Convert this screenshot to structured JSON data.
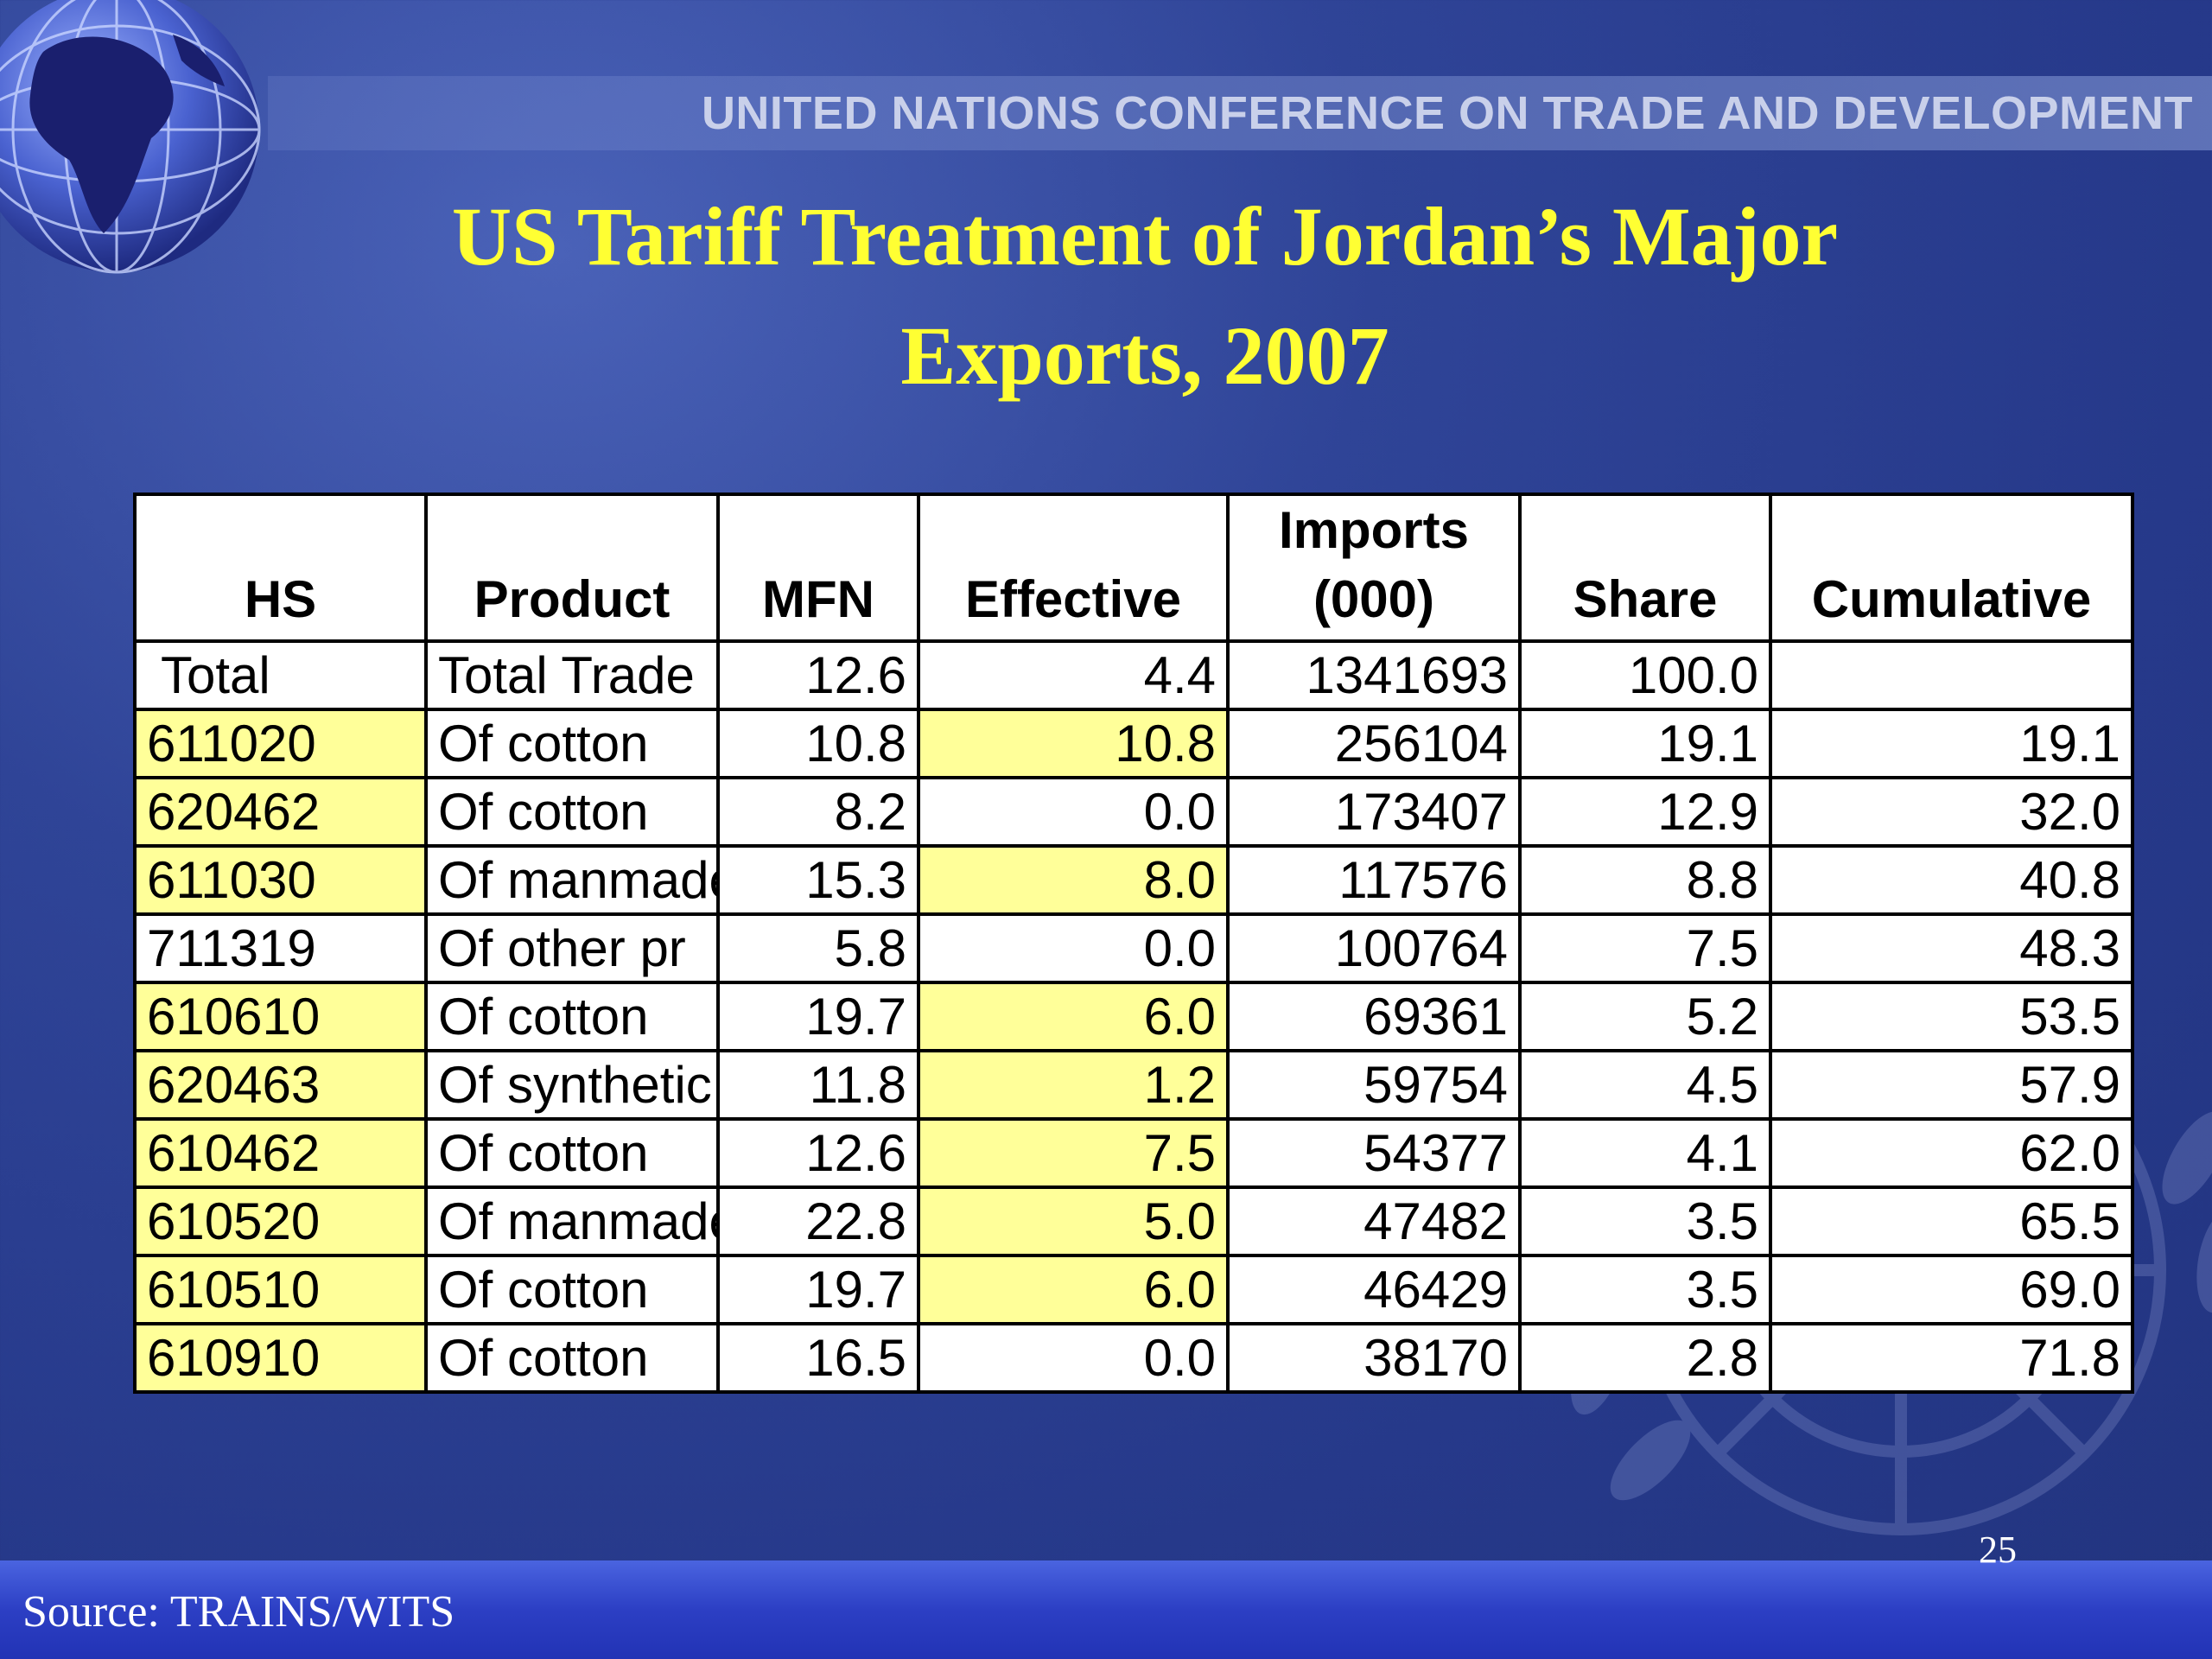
{
  "header": {
    "org_name": "UNITED NATIONS CONFERENCE ON TRADE AND DEVELOPMENT"
  },
  "title": {
    "line1": "US Tariff Treatment of Jordan’s Major",
    "line2": "Exports, 2007"
  },
  "table": {
    "columns": [
      "HS",
      "Product",
      "MFN",
      "Effective",
      "Imports (000)",
      "Share",
      "Cumulative"
    ],
    "imports_header": {
      "line1": "Imports",
      "line2": "(000)"
    },
    "rows": [
      {
        "hs": "Total",
        "product": "Total Trade",
        "mfn": "12.6",
        "effective": "4.4",
        "imports": "1341693",
        "share": "100.0",
        "cumulative": "",
        "highlight_hs": false,
        "highlight_effective": false
      },
      {
        "hs": "611020",
        "product": "Of cotton",
        "mfn": "10.8",
        "effective": "10.8",
        "imports": "256104",
        "share": "19.1",
        "cumulative": "19.1",
        "highlight_hs": true,
        "highlight_effective": true
      },
      {
        "hs": "620462",
        "product": "Of cotton",
        "mfn": "8.2",
        "effective": "0.0",
        "imports": "173407",
        "share": "12.9",
        "cumulative": "32.0",
        "highlight_hs": true,
        "highlight_effective": false
      },
      {
        "hs": "611030",
        "product": "Of manmade",
        "mfn": "15.3",
        "effective": "8.0",
        "imports": "117576",
        "share": "8.8",
        "cumulative": "40.8",
        "highlight_hs": true,
        "highlight_effective": true
      },
      {
        "hs": "711319",
        "product": "Of other pr",
        "mfn": "5.8",
        "effective": "0.0",
        "imports": "100764",
        "share": "7.5",
        "cumulative": "48.3",
        "highlight_hs": false,
        "highlight_effective": false
      },
      {
        "hs": "610610",
        "product": "Of cotton",
        "mfn": "19.7",
        "effective": "6.0",
        "imports": "69361",
        "share": "5.2",
        "cumulative": "53.5",
        "highlight_hs": true,
        "highlight_effective": true
      },
      {
        "hs": "620463",
        "product": "Of synthetic",
        "mfn": "11.8",
        "effective": "1.2",
        "imports": "59754",
        "share": "4.5",
        "cumulative": "57.9",
        "highlight_hs": true,
        "highlight_effective": true
      },
      {
        "hs": "610462",
        "product": "Of cotton",
        "mfn": "12.6",
        "effective": "7.5",
        "imports": "54377",
        "share": "4.1",
        "cumulative": "62.0",
        "highlight_hs": true,
        "highlight_effective": true
      },
      {
        "hs": "610520",
        "product": "Of manmade",
        "mfn": "22.8",
        "effective": "5.0",
        "imports": "47482",
        "share": "3.5",
        "cumulative": "65.5",
        "highlight_hs": true,
        "highlight_effective": true
      },
      {
        "hs": "610510",
        "product": "Of cotton",
        "mfn": "19.7",
        "effective": "6.0",
        "imports": "46429",
        "share": "3.5",
        "cumulative": "69.0",
        "highlight_hs": true,
        "highlight_effective": true
      },
      {
        "hs": "610910",
        "product": "Of cotton",
        "mfn": "16.5",
        "effective": "0.0",
        "imports": "38170",
        "share": "2.8",
        "cumulative": "71.8",
        "highlight_hs": true,
        "highlight_effective": false
      }
    ]
  },
  "footer": {
    "source": "Source: TRAINS/WITS",
    "page_number": "25"
  },
  "colors": {
    "title": "#ffff33",
    "highlight": "#ffff99",
    "background": "#2f4497",
    "footer": "#2c3fc4"
  },
  "icons": {
    "globe": "globe-icon",
    "emblem": "un-emblem-icon"
  }
}
